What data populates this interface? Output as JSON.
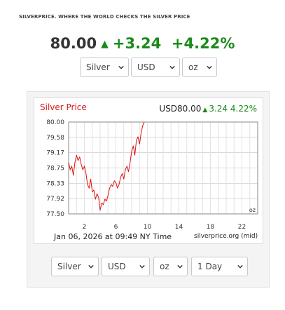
{
  "header": {
    "text": "SILVERPRICE. WHERE THE WORLD CHECKS THE SILVER PRICE"
  },
  "quote": {
    "price": "80.00",
    "change": "+3.24",
    "change_pct": "+4.22%",
    "up_color": "#1a8a1a"
  },
  "top_selects": {
    "metal": "Silver",
    "currency": "USD",
    "unit": "oz"
  },
  "chart": {
    "title": "Silver Price",
    "currency_price": "USD80.00",
    "change": "3.24",
    "change_pct": "4.22%",
    "unit_label": "oz",
    "date_text": "Jan 06, 2026 at 09:49 NY Time",
    "source_text": "silverprice.org (mid)"
  },
  "bottom_selects": {
    "metal": "Silver",
    "currency": "USD",
    "unit": "oz",
    "range": "1 Day"
  },
  "chart_data": {
    "type": "line",
    "title": "Silver Price",
    "xlabel": "",
    "ylabel": "",
    "series_color": "#e01010",
    "xlim": [
      0,
      24
    ],
    "ylim": [
      77.5,
      80.0
    ],
    "x_ticks": [
      "2",
      "6",
      "10",
      "14",
      "18",
      "22"
    ],
    "y_ticks": [
      "80.00",
      "79.58",
      "79.17",
      "78.75",
      "78.33",
      "77.92",
      "77.50"
    ],
    "grid": true,
    "x": [
      0.0,
      0.2,
      0.4,
      0.6,
      0.8,
      1.0,
      1.2,
      1.4,
      1.6,
      1.8,
      2.0,
      2.2,
      2.4,
      2.6,
      2.8,
      3.0,
      3.2,
      3.4,
      3.6,
      3.8,
      4.0,
      4.2,
      4.4,
      4.6,
      4.8,
      5.0,
      5.2,
      5.4,
      5.6,
      5.8,
      6.0,
      6.2,
      6.4,
      6.6,
      6.8,
      7.0,
      7.2,
      7.4,
      7.6,
      7.8,
      8.0,
      8.2,
      8.4,
      8.6,
      8.8,
      9.0,
      9.2,
      9.4,
      9.6
    ],
    "values": [
      78.9,
      78.7,
      78.8,
      78.55,
      78.9,
      79.1,
      78.95,
      79.05,
      78.85,
      78.7,
      78.8,
      78.6,
      78.3,
      78.2,
      78.45,
      78.1,
      78.15,
      77.9,
      78.05,
      77.95,
      77.6,
      77.8,
      77.75,
      77.9,
      77.85,
      78.0,
      78.2,
      78.3,
      78.25,
      78.4,
      78.35,
      78.2,
      78.3,
      78.5,
      78.6,
      78.45,
      78.7,
      78.8,
      78.65,
      78.9,
      79.2,
      79.35,
      79.1,
      79.5,
      79.6,
      79.4,
      79.7,
      79.9,
      80.0
    ]
  }
}
